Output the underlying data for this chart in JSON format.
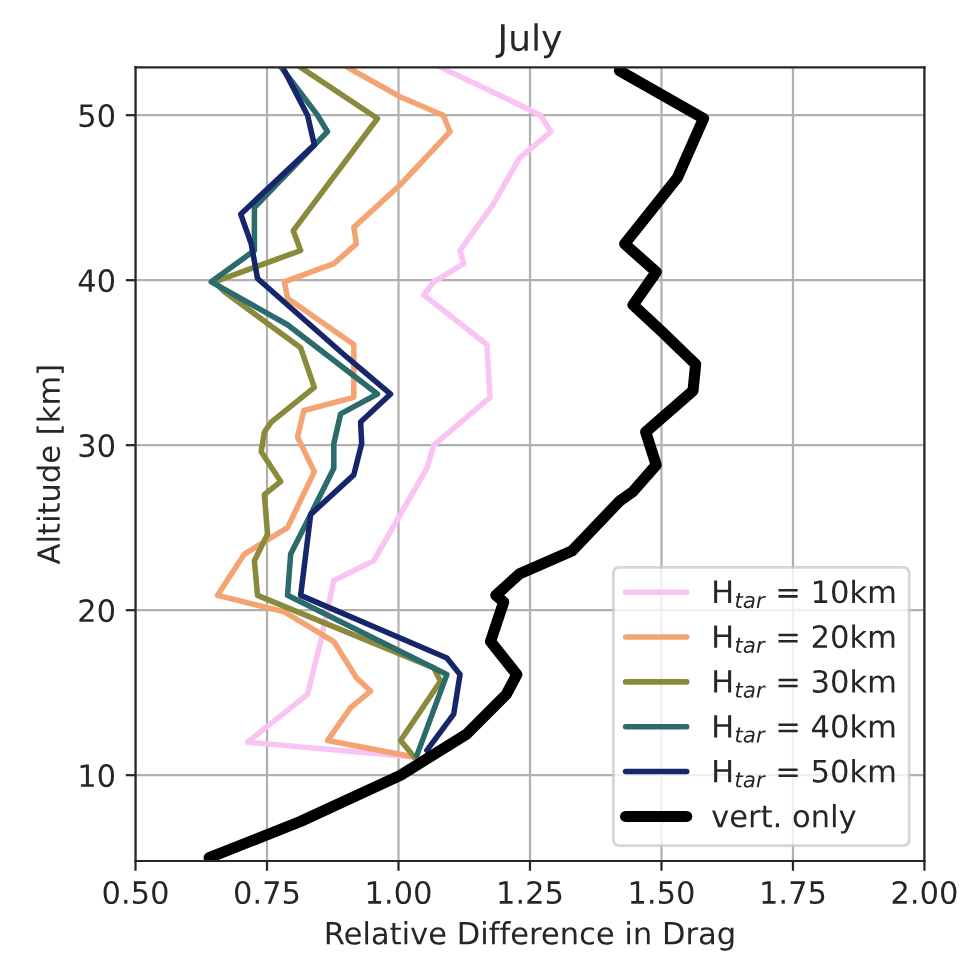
{
  "chart_data": {
    "type": "line",
    "title": "July",
    "xlabel": "Relative Difference in Drag",
    "ylabel": "Altitude [km]",
    "xlim": [
      0.5,
      2.0
    ],
    "xticks": [
      {
        "value": 0.5,
        "label": "0.50"
      },
      0.75,
      {
        "value": 1.0,
        "label": "1.00"
      },
      1.25,
      {
        "value": 1.5,
        "label": "1.50"
      },
      1.75,
      {
        "value": 2.0,
        "label": "2.00"
      }
    ],
    "ylim": [
      4.8,
      52.9
    ],
    "yticks": [
      10,
      20,
      30,
      40,
      50
    ],
    "grid": true,
    "legend": "bottom right",
    "series": [
      {
        "name": "H$_{tar}$ = 10km",
        "color": "#f9c4f4",
        "x": [
          1.03,
          0.713,
          0.827,
          0.852,
          0.877,
          0.953,
          1.054,
          1.067,
          1.174,
          1.168,
          1.048,
          1.067,
          1.124,
          1.117,
          1.18,
          1.23,
          1.29,
          1.27,
          1.193,
          1.08
        ],
        "values": [
          11.1,
          12.0,
          14.9,
          18.1,
          21.8,
          23.0,
          28.6,
          30.0,
          32.9,
          36.1,
          39.1,
          39.9,
          41.0,
          41.8,
          44.6,
          47.4,
          49.0,
          50.0,
          51.2,
          52.9
        ]
      },
      {
        "name": "H$_{tar}$ = 20km",
        "color": "#f4a373",
        "x": [
          1.03,
          0.865,
          0.909,
          0.947,
          0.92,
          0.877,
          0.783,
          0.656,
          0.707,
          0.789,
          0.84,
          0.808,
          0.82,
          0.915,
          0.915,
          0.789,
          0.783,
          0.877,
          0.92,
          0.915,
          1.004,
          1.098,
          1.085,
          1.004,
          0.903
        ],
        "values": [
          11.1,
          12.1,
          14.1,
          15.1,
          15.9,
          18.1,
          19.9,
          20.9,
          23.4,
          25.0,
          28.4,
          30.5,
          32.1,
          32.9,
          36.1,
          38.9,
          39.9,
          41.0,
          42.2,
          43.2,
          45.8,
          49.0,
          50.0,
          51.1,
          52.9
        ]
      },
      {
        "name": "H$_{tar}$ = 30km",
        "color": "#8a8a3c",
        "x": [
          1.03,
          1.004,
          1.08,
          1.067,
          0.732,
          0.726,
          0.751,
          0.745,
          0.776,
          0.739,
          0.745,
          0.758,
          0.84,
          0.814,
          0.669,
          0.65,
          0.814,
          0.8,
          0.96,
          0.814
        ],
        "values": [
          11.1,
          12.1,
          15.7,
          16.5,
          20.9,
          23.0,
          24.6,
          27.0,
          27.8,
          29.6,
          30.8,
          31.4,
          33.5,
          35.9,
          39.3,
          39.9,
          41.8,
          43.0,
          49.8,
          52.9
        ]
      },
      {
        "name": "H$_{tar}$ = 40km",
        "color": "#2c6b6b",
        "x": [
          1.035,
          1.092,
          0.789,
          0.795,
          0.833,
          0.877,
          0.877,
          0.89,
          0.96,
          0.789,
          0.644,
          0.726,
          0.726,
          0.865,
          0.846,
          0.777
        ],
        "values": [
          11.2,
          16.1,
          20.9,
          23.4,
          25.8,
          28.6,
          30.1,
          31.9,
          33.1,
          37.3,
          39.9,
          41.8,
          44.4,
          49.0,
          50.0,
          52.9
        ]
      },
      {
        "name": "H$_{tar}$ = 50km",
        "color": "#17266b",
        "x": [
          1.054,
          1.105,
          1.117,
          1.092,
          0.814,
          0.833,
          0.915,
          0.93,
          0.928,
          0.985,
          0.903,
          0.732,
          0.72,
          0.7,
          0.84,
          0.827,
          0.783
        ],
        "values": [
          11.5,
          13.7,
          16.1,
          17.1,
          20.9,
          25.8,
          28.2,
          30.1,
          31.4,
          33.1,
          35.3,
          40.1,
          42.2,
          44.0,
          48.2,
          50.0,
          52.7
        ]
      },
      {
        "name": "vert. only",
        "color": "#000000",
        "x": [
          0.64,
          0.814,
          1.004,
          1.13,
          1.205,
          1.225,
          1.175,
          1.2,
          1.185,
          1.23,
          1.33,
          1.42,
          1.446,
          1.49,
          1.47,
          1.56,
          1.565,
          1.5,
          1.446,
          1.49,
          1.43,
          1.53,
          1.58,
          1.42
        ],
        "values": [
          5.0,
          7.2,
          10.0,
          12.5,
          14.9,
          16.1,
          18.1,
          20.5,
          20.9,
          22.2,
          23.6,
          26.6,
          27.2,
          28.8,
          30.8,
          33.3,
          34.9,
          36.9,
          38.5,
          40.5,
          42.2,
          46.2,
          49.8,
          52.7
        ]
      }
    ]
  }
}
